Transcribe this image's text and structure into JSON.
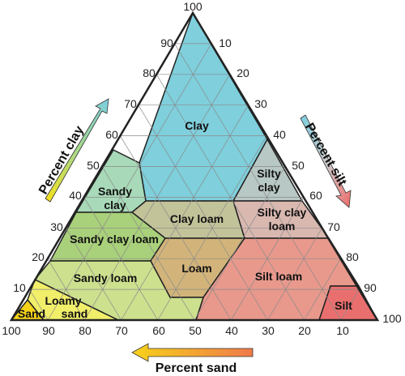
{
  "diagram": {
    "type": "soil-texture-triangle",
    "regions": [
      {
        "id": "clay",
        "label": "Clay",
        "color": "#7fcfdc"
      },
      {
        "id": "sandy-clay",
        "label": "Sandy\nclay",
        "color": "#a8d9b8"
      },
      {
        "id": "silty-clay",
        "label": "Silty\nclay",
        "color": "#b8c8c4"
      },
      {
        "id": "clay-loam",
        "label": "Clay loam",
        "color": "#c3c39a"
      },
      {
        "id": "silty-clay-loam",
        "label": "Silty clay\nloam",
        "color": "#d9b8b0"
      },
      {
        "id": "sandy-clay-loam",
        "label": "Sandy clay loam",
        "color": "#a9d07a"
      },
      {
        "id": "loam",
        "label": "Loam",
        "color": "#d2b47a"
      },
      {
        "id": "silt-loam",
        "label": "Silt loam",
        "color": "#e8998c"
      },
      {
        "id": "sandy-loam",
        "label": "Sandy loam",
        "color": "#cde08e"
      },
      {
        "id": "loamy-sand",
        "label": "Loamy\nsand",
        "color": "#f1ee6a"
      },
      {
        "id": "sand",
        "label": "Sand",
        "color": "#f5d21a"
      },
      {
        "id": "silt",
        "label": "Silt",
        "color": "#e96f6f"
      }
    ],
    "ticks": {
      "clay": [
        "10",
        "20",
        "30",
        "40",
        "50",
        "60",
        "70",
        "80",
        "90",
        "100"
      ],
      "silt": [
        "10",
        "20",
        "30",
        "40",
        "50",
        "60",
        "70",
        "80",
        "90",
        "100"
      ],
      "sand": [
        "100",
        "90",
        "80",
        "70",
        "60",
        "50",
        "40",
        "30",
        "20",
        "10"
      ]
    },
    "axis_titles": {
      "clay": "Percent clay",
      "silt": "Percent silt",
      "sand": "Percent sand"
    },
    "colors": {
      "outline": "#222222",
      "grid": "#8a8a8a"
    }
  }
}
